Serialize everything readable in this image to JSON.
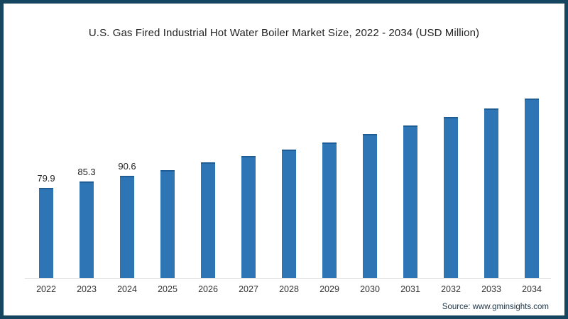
{
  "title": "U.S. Gas Fired Industrial Hot Water Boiler Market Size, 2022 - 2034 (USD Million)",
  "source": "Source: www.gminsights.com",
  "colors": {
    "frame_border": "#16465f",
    "bar": "#2e75b6",
    "axis_line": "#d9d9d9",
    "title_text": "#222222",
    "tick_text": "#333333",
    "source_text": "#1d3244"
  },
  "chart_data": {
    "type": "bar",
    "title": "U.S. Gas Fired Industrial Hot Water Boiler Market Size, 2022 - 2034 (USD Million)",
    "xlabel": "",
    "ylabel": "",
    "categories": [
      "2022",
      "2023",
      "2024",
      "2025",
      "2026",
      "2027",
      "2028",
      "2029",
      "2030",
      "2031",
      "2032",
      "2033",
      "2034"
    ],
    "values": [
      79.9,
      85.3,
      90.6,
      95.9,
      102.2,
      108.1,
      114.1,
      120.0,
      127.7,
      135.2,
      143.0,
      150.3,
      159.1
    ],
    "data_labels": [
      "79.9",
      "85.3",
      "90.6",
      "",
      "",
      "",
      "",
      "",
      "",
      "",
      "",
      "",
      ""
    ],
    "ylim": [
      0,
      165
    ],
    "grid": false,
    "legend_position": "none",
    "y_axis_visible": false,
    "source": "Source: www.gminsights.com"
  }
}
